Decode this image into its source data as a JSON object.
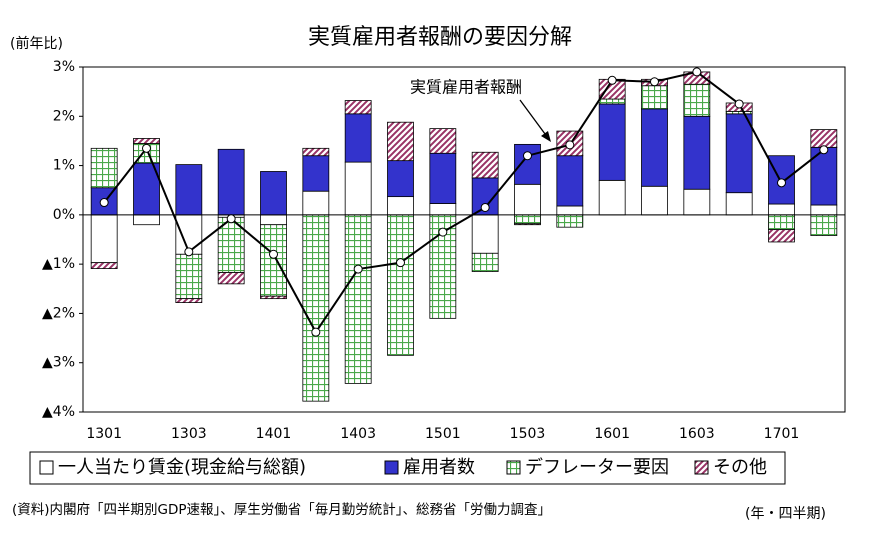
{
  "chart_data": {
    "type": "stacked_bar_line",
    "title": "実質雇用者報酬の要因分解",
    "y_label": "(前年比)",
    "x_note": "(年・四半期)",
    "source": "(資料)内閣府「四半期別GDP速報」、厚生労働省「毎月勤労統計」、総務省「労働力調査」",
    "annotation": "実質雇用者報酬",
    "categories": [
      "1301",
      null,
      "1303",
      null,
      "1401",
      null,
      "1403",
      null,
      "1501",
      null,
      "1503",
      null,
      "1601",
      null,
      "1603",
      null,
      "1701",
      null
    ],
    "ylim": [
      -4,
      3
    ],
    "yticks": [
      {
        "value": 3,
        "label": "3%"
      },
      {
        "value": 2,
        "label": "2%"
      },
      {
        "value": 1,
        "label": "1%"
      },
      {
        "value": 0,
        "label": "0%"
      },
      {
        "value": -1,
        "label": "▲1%"
      },
      {
        "value": -2,
        "label": "▲2%"
      },
      {
        "value": -3,
        "label": "▲3%"
      },
      {
        "value": -4,
        "label": "▲4%"
      }
    ],
    "series": [
      {
        "name": "一人当たり賃金(現金給与総額)",
        "color": "#ffffff",
        "pattern": "solid",
        "values": [
          -0.97,
          -0.2,
          -0.8,
          -0.05,
          -0.2,
          0.48,
          1.07,
          0.37,
          0.23,
          -0.78,
          0.62,
          0.18,
          0.7,
          0.58,
          0.52,
          0.45,
          0.22,
          0.2
        ]
      },
      {
        "name": "雇用者数",
        "color": "#3333cc",
        "pattern": "solid",
        "values": [
          0.55,
          1.05,
          1.02,
          1.33,
          0.88,
          0.72,
          0.98,
          0.73,
          1.02,
          0.75,
          0.81,
          1.02,
          1.55,
          1.57,
          1.48,
          1.6,
          0.98,
          1.17
        ]
      },
      {
        "name": "デフレーター要因",
        "color": "#4aa84a",
        "pattern": "grid",
        "values": [
          0.8,
          0.4,
          -0.9,
          -1.12,
          -1.45,
          -3.78,
          -3.42,
          -2.85,
          -2.1,
          -0.37,
          -0.18,
          -0.25,
          0.1,
          0.47,
          0.65,
          0.05,
          -0.3,
          -0.42
        ]
      },
      {
        "name": "その他",
        "color": "#993366",
        "pattern": "diagonal",
        "values": [
          -0.12,
          0.1,
          -0.08,
          -0.23,
          -0.05,
          0.15,
          0.27,
          0.78,
          0.5,
          0.52,
          -0.02,
          0.5,
          0.4,
          0.13,
          0.25,
          0.17,
          -0.25,
          0.36
        ]
      }
    ],
    "line": {
      "name": "実質雇用者報酬",
      "color": "#000000",
      "values": [
        0.25,
        1.35,
        -0.75,
        -0.08,
        -0.8,
        -2.38,
        -1.1,
        -0.97,
        -0.35,
        0.15,
        1.2,
        1.42,
        2.73,
        2.7,
        2.9,
        2.25,
        0.65,
        1.32
      ]
    }
  }
}
